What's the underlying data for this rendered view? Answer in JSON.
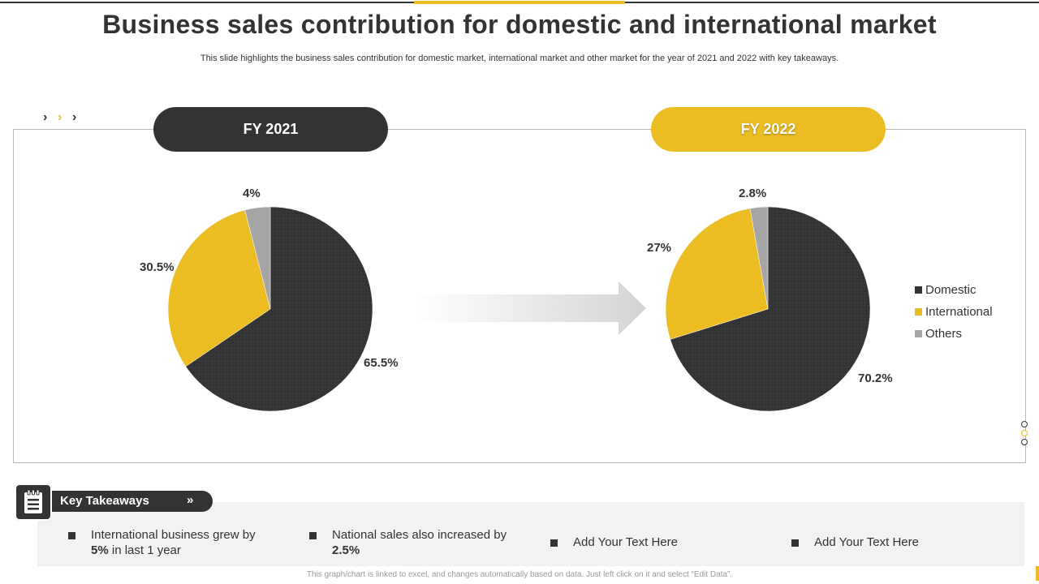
{
  "header": {
    "title": "Business sales contribution for domestic and international market",
    "subtitle": "This slide highlights the business sales contribution for domestic market, international market and other market for the year of 2021 and 2022 with key takeaways."
  },
  "colors": {
    "domestic": "#333333",
    "international": "#ebbd22",
    "others": "#a6a6a6",
    "accent": "#ebbd22"
  },
  "chart_data": [
    {
      "type": "pie",
      "title": "FY 2021",
      "categories": [
        "Domestic",
        "International",
        "Others"
      ],
      "values": [
        65.5,
        30.5,
        4
      ],
      "labels": [
        "65.5%",
        "30.5%",
        "4%"
      ]
    },
    {
      "type": "pie",
      "title": "FY 2022",
      "categories": [
        "Domestic",
        "International",
        "Others"
      ],
      "values": [
        70.2,
        27,
        2.8
      ],
      "labels": [
        "70.2%",
        "27%",
        "2.8%"
      ]
    }
  ],
  "legend": {
    "placement": "right",
    "items": [
      "Domestic",
      "International",
      "Others"
    ]
  },
  "takeaways": {
    "heading": "Key Takeaways",
    "items": [
      {
        "text": "International business grew by",
        "bold": "5%",
        "tail": " in last 1 year"
      },
      {
        "text": "National sales also increased by",
        "bold": "2.5%",
        "tail": ""
      },
      {
        "text": "Add Your Text Here",
        "bold": "",
        "tail": ""
      },
      {
        "text": "Add Your Text Here",
        "bold": "",
        "tail": ""
      }
    ]
  },
  "footer": {
    "note": "This graph/chart is linked to excel, and changes automatically based on data. Just left click on it and select “Edit Data”."
  }
}
